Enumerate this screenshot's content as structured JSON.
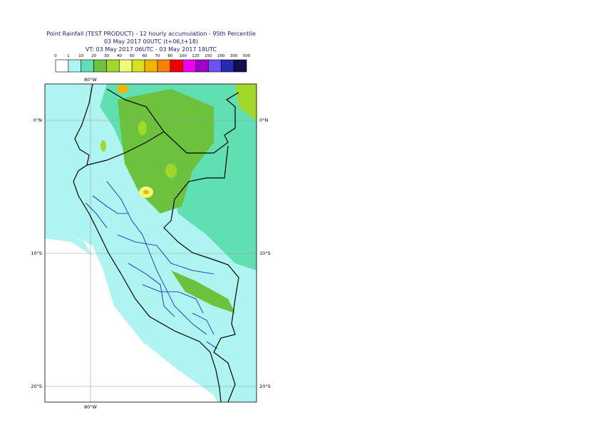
{
  "header": {
    "title": "Point Rainfall (TEST PRODUCT) - 12 hourly accumulation - 95th Percentile",
    "base": "03 May 2017 00UTC (t+06,t+18)",
    "valid": "VT: 03 May 2017 06UTC - 03 May 2017 18UTC"
  },
  "legend": {
    "labels": [
      "0",
      "1",
      "10",
      "20",
      "30",
      "40",
      "50",
      "60",
      "70",
      "80",
      "100",
      "125",
      "150",
      "200",
      "300",
      "500"
    ],
    "colors": [
      "#ffffff",
      "#aef4f0",
      "#5fdfb2",
      "#6cc23c",
      "#a2d82a",
      "#eefb78",
      "#d8e020",
      "#f2b400",
      "#f28200",
      "#f00000",
      "#f000f0",
      "#a000c8",
      "#7050f0",
      "#2828b0",
      "#101050"
    ]
  },
  "map": {
    "lon_labels": [
      "80°W"
    ],
    "lat_labels": [
      "0°N",
      "10°S",
      "20°S"
    ]
  }
}
